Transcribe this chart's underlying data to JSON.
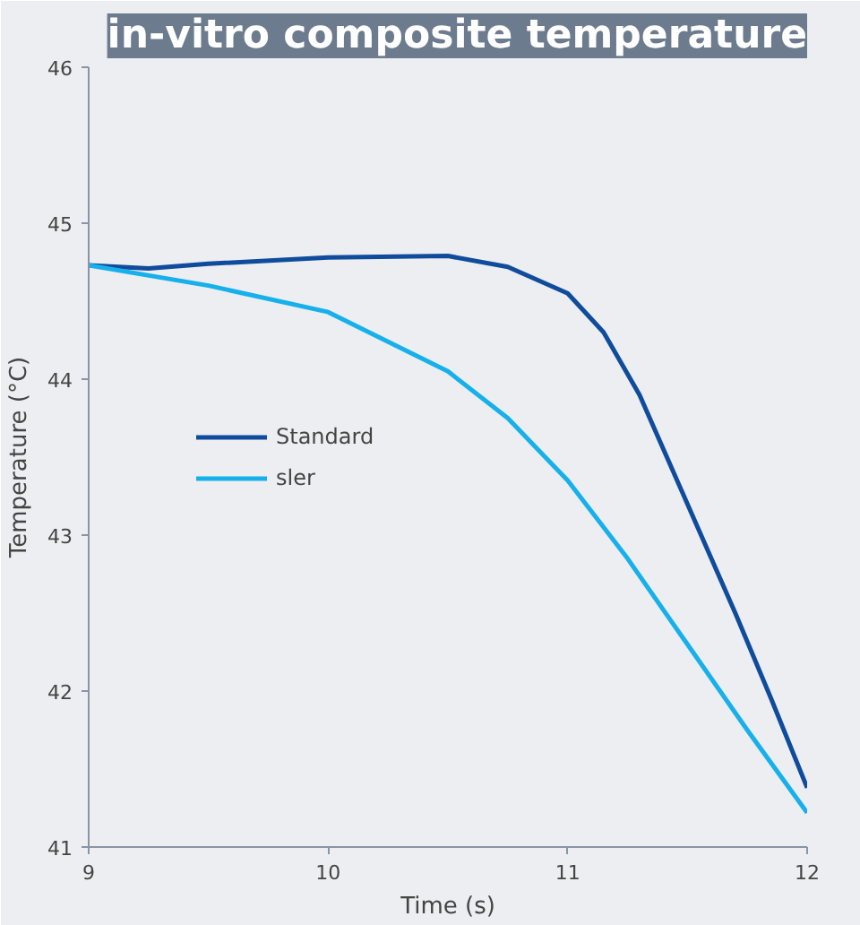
{
  "chart_data": {
    "type": "line",
    "title": "in-vitro composite temperature",
    "xlabel": "Time (s)",
    "ylabel": "Temperature (°C)",
    "xlim": [
      9,
      12
    ],
    "xticks": [
      9,
      10,
      11,
      12
    ],
    "ylim": [
      41,
      46
    ],
    "yticks": [
      41,
      42,
      43,
      44,
      45,
      46
    ],
    "grid": false,
    "legend": "left",
    "line_style": "solid",
    "series": [
      {
        "name": "Standard",
        "color": "#0f4c9c",
        "x": [
          9,
          9.25,
          9.5,
          10,
          10.5,
          10.75,
          11,
          11.15,
          11.3,
          11.5,
          11.7,
          11.85,
          12
        ],
        "values": [
          44.73,
          44.71,
          44.74,
          44.78,
          44.79,
          44.72,
          44.55,
          44.3,
          43.9,
          43.2,
          42.5,
          41.95,
          41.38
        ]
      },
      {
        "name": "sler",
        "color": "#17b0ea",
        "x": [
          9,
          9.5,
          10,
          10.5,
          10.75,
          11,
          11.25,
          11.5,
          11.75,
          12
        ],
        "values": [
          44.73,
          44.6,
          44.43,
          44.05,
          43.75,
          43.35,
          42.85,
          42.3,
          41.75,
          41.22
        ]
      }
    ]
  }
}
